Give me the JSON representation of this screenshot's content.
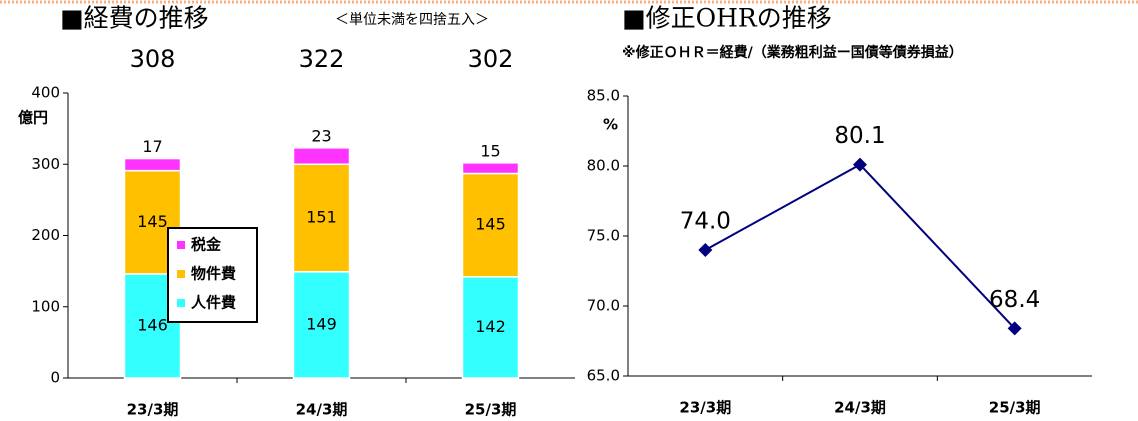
{
  "chart_data": [
    {
      "type": "bar",
      "stacked": true,
      "title": "■経費の推移",
      "subtitle": "＜単位未満を四捨五入＞",
      "totals": [
        308,
        322,
        302
      ],
      "y_label": "億円",
      "categories": [
        "23/3期",
        "24/3期",
        "25/3期"
      ],
      "series": [
        {
          "name": "人件費",
          "color": "#33ffff",
          "values": [
            146,
            149,
            142
          ]
        },
        {
          "name": "物件費",
          "color": "#ffc000",
          "values": [
            145,
            151,
            145
          ]
        },
        {
          "name": "税金",
          "color": "#ff33ff",
          "values": [
            17,
            23,
            15
          ]
        }
      ],
      "ylim": [
        0,
        400
      ],
      "yticks": [
        0,
        100,
        200,
        300,
        400
      ],
      "legend": "center"
    },
    {
      "type": "line",
      "title": "■修正OHRの推移",
      "subtitle": "※修正ＯＨＲ＝経費/（業務粗利益ー国債等債券損益）",
      "y_label": "%",
      "categories": [
        "23/3期",
        "24/3期",
        "25/3期"
      ],
      "values": [
        74,
        80.1,
        68.4
      ],
      "value_labels": [
        "74.0",
        "80.1",
        "68.4"
      ],
      "color": "#000080",
      "ylim": [
        65,
        85
      ],
      "yticks": [
        {
          "value": 65,
          "label": "65.0"
        },
        {
          "value": 70,
          "label": "70.0"
        },
        {
          "value": 75,
          "label": "75.0"
        },
        {
          "value": 80,
          "label": "80.0"
        },
        {
          "value": 85,
          "label": "85.0"
        }
      ]
    }
  ]
}
